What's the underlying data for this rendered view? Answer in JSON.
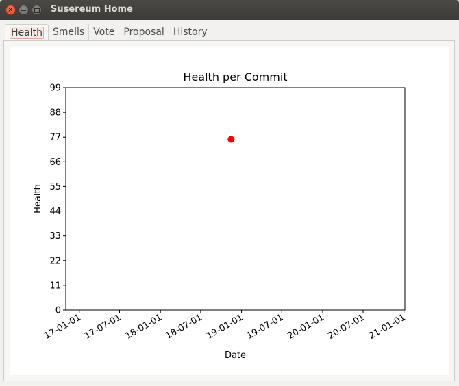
{
  "window": {
    "title": "Susereum Home",
    "buttons": {
      "close": "×"
    }
  },
  "tabs": [
    {
      "label": "Health",
      "active": true
    },
    {
      "label": "Smells",
      "active": false
    },
    {
      "label": "Vote",
      "active": false
    },
    {
      "label": "Proposal",
      "active": false
    },
    {
      "label": "History",
      "active": false
    }
  ],
  "colors": {
    "point": "#ff0000",
    "close_button": "#df4a16"
  },
  "chart_data": {
    "type": "scatter",
    "title": "Health per Commit",
    "xlabel": "Date",
    "ylabel": "Health",
    "x_ticks": [
      "17-01-01",
      "17-07-01",
      "18-01-01",
      "18-07-01",
      "19-01-01",
      "19-07-01",
      "20-01-01",
      "20-07-01",
      "21-01-01"
    ],
    "y_ticks": [
      0,
      11,
      22,
      33,
      44,
      55,
      66,
      77,
      88,
      99
    ],
    "ylim": [
      0,
      99
    ],
    "xlim": [
      "2016-11-01",
      "2021-01-05"
    ],
    "points": [
      {
        "x": "2018-11-15",
        "y": 76
      }
    ],
    "grid": false
  }
}
